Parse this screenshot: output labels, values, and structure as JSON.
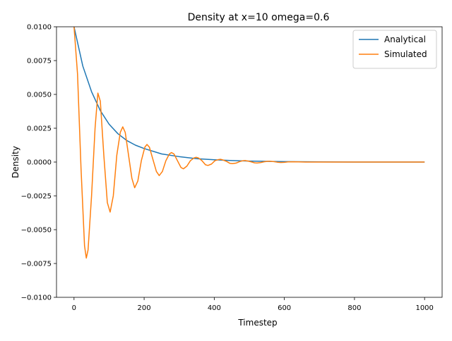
{
  "chart_data": {
    "type": "line",
    "title": "Density at x=10 omega=0.6",
    "xlabel": "Timestep",
    "ylabel": "Density",
    "xlim": [
      -50,
      1050
    ],
    "ylim": [
      -0.01,
      0.01
    ],
    "xticks": [
      0,
      200,
      400,
      600,
      800,
      1000
    ],
    "xtick_labels": [
      "0",
      "200",
      "400",
      "600",
      "800",
      "1000"
    ],
    "yticks": [
      -0.01,
      -0.0075,
      -0.005,
      -0.0025,
      0,
      0.0025,
      0.005,
      0.0075,
      0.01
    ],
    "ytick_labels": [
      "−0.0100",
      "−0.0075",
      "−0.0050",
      "−0.0025",
      "0.0000",
      "0.0025",
      "0.0050",
      "0.0075",
      "0.0100"
    ],
    "grid": false,
    "legend_position": "upper right",
    "series": [
      {
        "name": "Analytical",
        "color": "#1f77b4",
        "x": [
          0,
          25,
          50,
          75,
          100,
          125,
          150,
          175,
          200,
          250,
          300,
          350,
          400,
          450,
          500,
          550,
          600,
          700,
          800,
          900,
          1000
        ],
        "y": [
          0.01,
          0.0071,
          0.0052,
          0.0038,
          0.0028,
          0.0021,
          0.0016,
          0.00125,
          0.001,
          0.0006,
          0.0004,
          0.00025,
          0.00017,
          0.00011,
          7e-05,
          5e-05,
          3e-05,
          1e-05,
          0,
          0,
          0
        ]
      },
      {
        "name": "Simulated",
        "color": "#ff7f0e",
        "x": [
          0,
          10,
          20,
          30,
          35,
          40,
          50,
          60,
          68,
          75,
          85,
          95,
          103,
          112,
          122,
          132,
          139,
          146,
          155,
          165,
          173,
          182,
          192,
          202,
          208,
          215,
          225,
          235,
          243,
          252,
          262,
          272,
          278,
          285,
          295,
          305,
          312,
          322,
          332,
          342,
          348,
          355,
          365,
          375,
          382,
          392,
          402,
          412,
          418,
          425,
          435,
          445,
          452,
          462,
          472,
          482,
          488,
          495,
          505,
          515,
          522,
          532,
          542,
          552,
          558,
          570,
          580,
          590,
          600,
          610,
          625,
          640,
          660,
          680,
          700,
          750,
          800,
          900,
          1000
        ],
        "y": [
          0.01,
          0.0065,
          -0.0005,
          -0.0062,
          -0.0071,
          -0.0065,
          -0.0025,
          0.0025,
          0.0051,
          0.0045,
          0.0005,
          -0.003,
          -0.0037,
          -0.0025,
          0.0005,
          0.0022,
          0.0026,
          0.0022,
          0.0006,
          -0.0012,
          -0.0019,
          -0.0014,
          0.0001,
          0.0011,
          0.0013,
          0.0011,
          0.0002,
          -0.0007,
          -0.001,
          -0.0007,
          0.0001,
          0.0006,
          0.0007,
          0.0006,
          0.0001,
          -0.0004,
          -0.0005,
          -0.0003,
          0.0001,
          0.0003,
          0.00035,
          0.0003,
          0.0001,
          -0.0002,
          -0.00025,
          -0.00015,
          0.0001,
          0.00018,
          0.0002,
          0.00015,
          5e-05,
          -0.0001,
          -0.00012,
          -8e-05,
          3e-05,
          0.0001,
          0.00011,
          8e-05,
          2e-05,
          -6e-05,
          -7e-05,
          -4e-05,
          2e-05,
          5e-05,
          6e-05,
          3e-05,
          -1e-05,
          -3e-05,
          -2e-05,
          1e-05,
          2e-05,
          1e-05,
          0,
          0,
          0,
          0,
          0,
          0,
          0
        ]
      }
    ]
  }
}
